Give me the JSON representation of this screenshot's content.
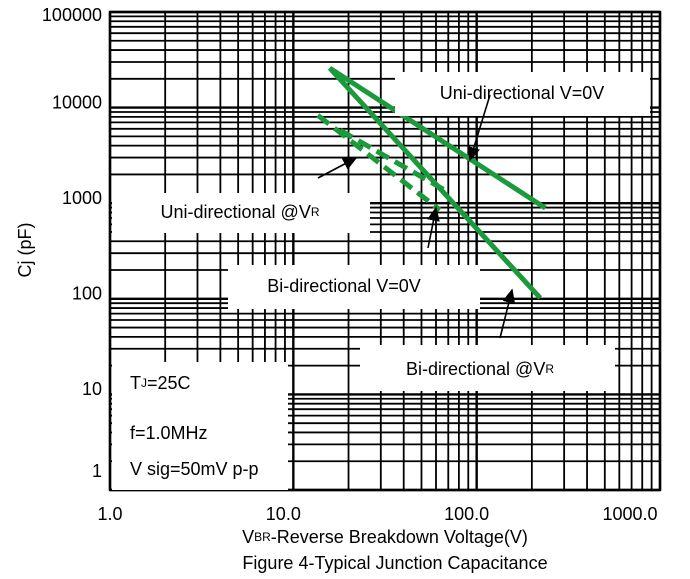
{
  "chart_data": {
    "type": "line",
    "title": "Figure 4-Typical Junction Capacitance",
    "x_label": [
      {
        "text": "V"
      },
      {
        "sub": "BR"
      },
      {
        "text": "-Reverse Breakdown Voltage(V)"
      }
    ],
    "y_label": "Cj (pF)",
    "log_x": true,
    "log_y": true,
    "grid": true,
    "minor_grid": true,
    "xlim": [
      1,
      1000
    ],
    "ylim": [
      1,
      100000
    ],
    "xticks": [
      {
        "value": 1,
        "label": "1.0"
      },
      {
        "value": 10,
        "label": "10.0"
      },
      {
        "value": 100,
        "label": "100.0"
      },
      {
        "value": 1000,
        "label": "1000.0"
      }
    ],
    "yticks": [
      1,
      10,
      100,
      1000,
      10000,
      100000
    ],
    "series": [
      {
        "name": "Uni-directional V=0V",
        "color": "#1a9a3a",
        "dashed": false,
        "x": [
          15.8,
          237
        ],
        "values": [
          25900,
          890
        ]
      },
      {
        "name": "Bi-directional @VR",
        "color": "#1a9a3a",
        "dashed": false,
        "x": [
          15.8,
          222
        ],
        "values": [
          25900,
          102
        ]
      },
      {
        "name": "Uni-directional @VR",
        "color": "#1a9a3a",
        "dashed": true,
        "x": [
          13.6,
          63
        ],
        "values": [
          8300,
          850
        ]
      },
      {
        "name": "Bi-directional V=0V",
        "color": "#1a9a3a",
        "dashed": true,
        "x": [
          18,
          67
        ],
        "values": [
          5800,
          1370
        ]
      }
    ],
    "annotations": [
      {
        "parts": [
          {
            "text": "Uni-directional V=0V"
          }
        ]
      },
      {
        "parts": [
          {
            "text": "Uni-directional @V"
          },
          {
            "sub": "R"
          }
        ]
      },
      {
        "parts": [
          {
            "text": "Bi-directional V=0V"
          }
        ]
      },
      {
        "parts": [
          {
            "text": "Bi-directional @V"
          },
          {
            "sub": "R"
          }
        ]
      },
      {
        "parts": [
          {
            "text": "T"
          },
          {
            "sub": "J"
          },
          {
            "text": "=25C"
          }
        ]
      },
      {
        "parts": [
          {
            "text": "f=1.0MHz"
          }
        ]
      },
      {
        "parts": [
          {
            "text": "V sig=50mV p-p"
          }
        ]
      }
    ]
  }
}
